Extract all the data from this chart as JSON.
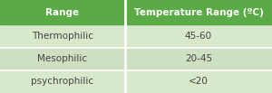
{
  "header": [
    "Range",
    "Temperature Range (ºC)"
  ],
  "rows": [
    [
      "Thermophilic",
      "45-60"
    ],
    [
      "Mesophilic",
      "20-45"
    ],
    [
      "psychrophilic",
      "<20"
    ]
  ],
  "header_bg": "#5aaa46",
  "header_text_color": "#ffffff",
  "row_bg_light": "#d8e8cb",
  "row_bg_dark": "#cfe0c2",
  "row_text_color": "#444444",
  "border_color": "#ffffff",
  "col_split": 0.46,
  "fig_width": 3.0,
  "fig_height": 1.03,
  "dpi": 100,
  "header_font_size": 7.5,
  "row_font_size": 7.5
}
